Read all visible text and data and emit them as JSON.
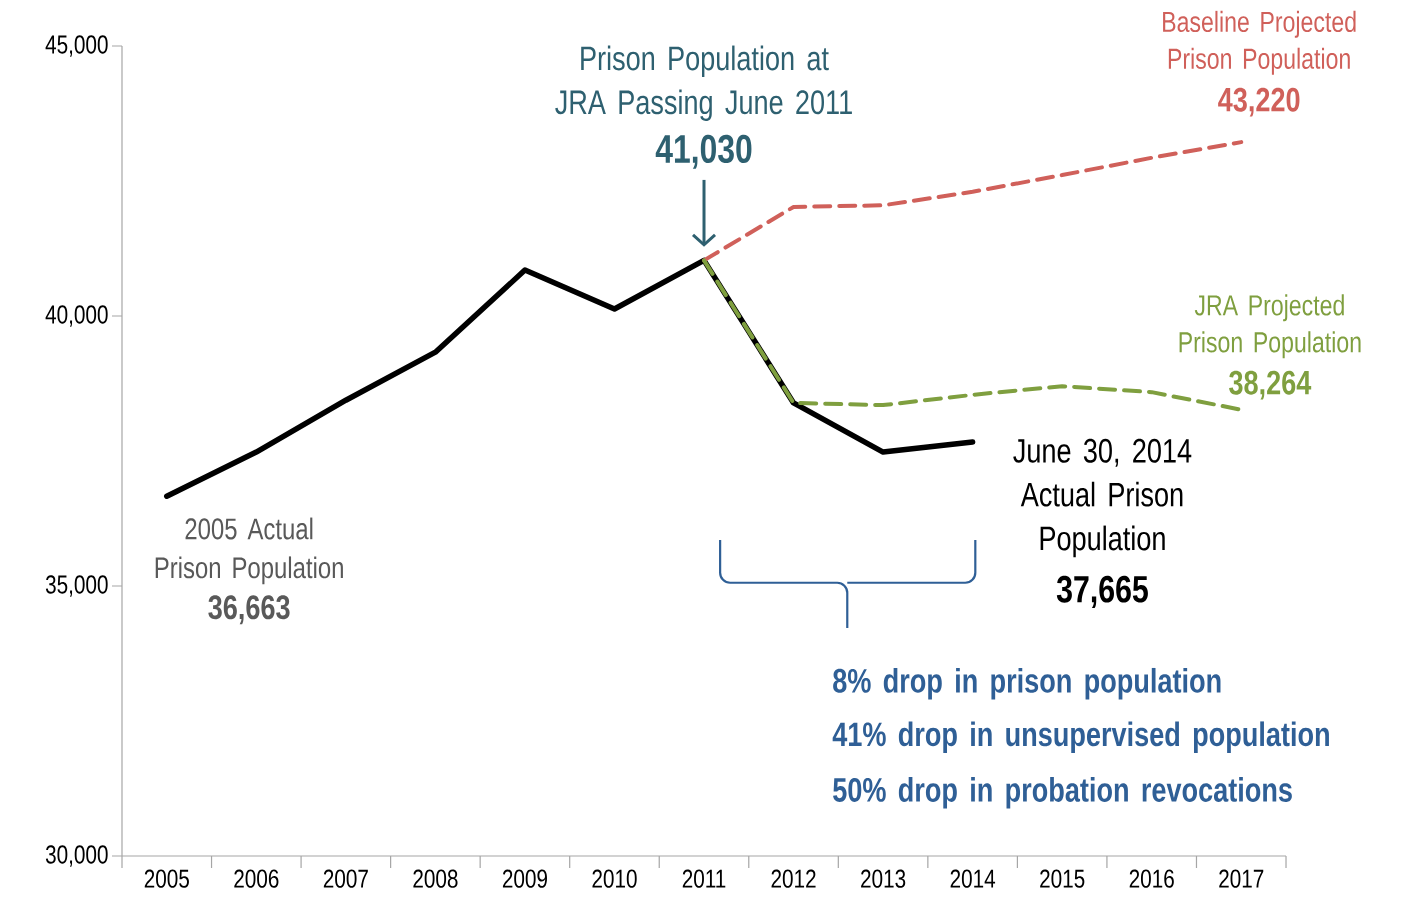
{
  "chart_data": {
    "type": "line",
    "categories": [
      "2005",
      "2006",
      "2007",
      "2008",
      "2009",
      "2010",
      "2011",
      "2012",
      "2013",
      "2014",
      "2015",
      "2016",
      "2017"
    ],
    "series": [
      {
        "color": "#000000",
        "line_style": "solid",
        "values": [
          36663,
          37480,
          38440,
          39330,
          40850,
          40130,
          41030,
          38390,
          37480,
          37665,
          null,
          null,
          null
        ]
      },
      {
        "name": "Baseline Projected Prison Population",
        "color": "#d0605a",
        "line_style": "dashed",
        "values": [
          null,
          null,
          null,
          null,
          null,
          null,
          41030,
          42020,
          42050,
          42300,
          42610,
          42930,
          43220
        ]
      },
      {
        "name": "JRA Projected Prison Population",
        "color": "#7f9f3f",
        "line_style": "dashed",
        "values": [
          null,
          null,
          null,
          null,
          null,
          null,
          41030,
          38390,
          38350,
          38540,
          38700,
          38590,
          38264
        ]
      }
    ],
    "ylim": [
      30000,
      45000
    ],
    "yticks": [
      {
        "value": 30000,
        "label": "30,000"
      },
      {
        "value": 35000,
        "label": "35,000"
      },
      {
        "value": 40000,
        "label": "40,000"
      },
      {
        "value": 45000,
        "label": "45,000"
      }
    ],
    "grid": false,
    "legend": false,
    "marker": "none",
    "annotations": [
      "Prison Population at JRA Passing June 2011",
      "41,030",
      "2005 Actual Prison Population",
      "36,663",
      "June 30, 2014 Actual Prison Population",
      "37,665",
      "43,220",
      "38,264",
      "8% drop in prison population",
      "41% drop in unsupervised population",
      "50% drop in probation revocations"
    ]
  }
}
